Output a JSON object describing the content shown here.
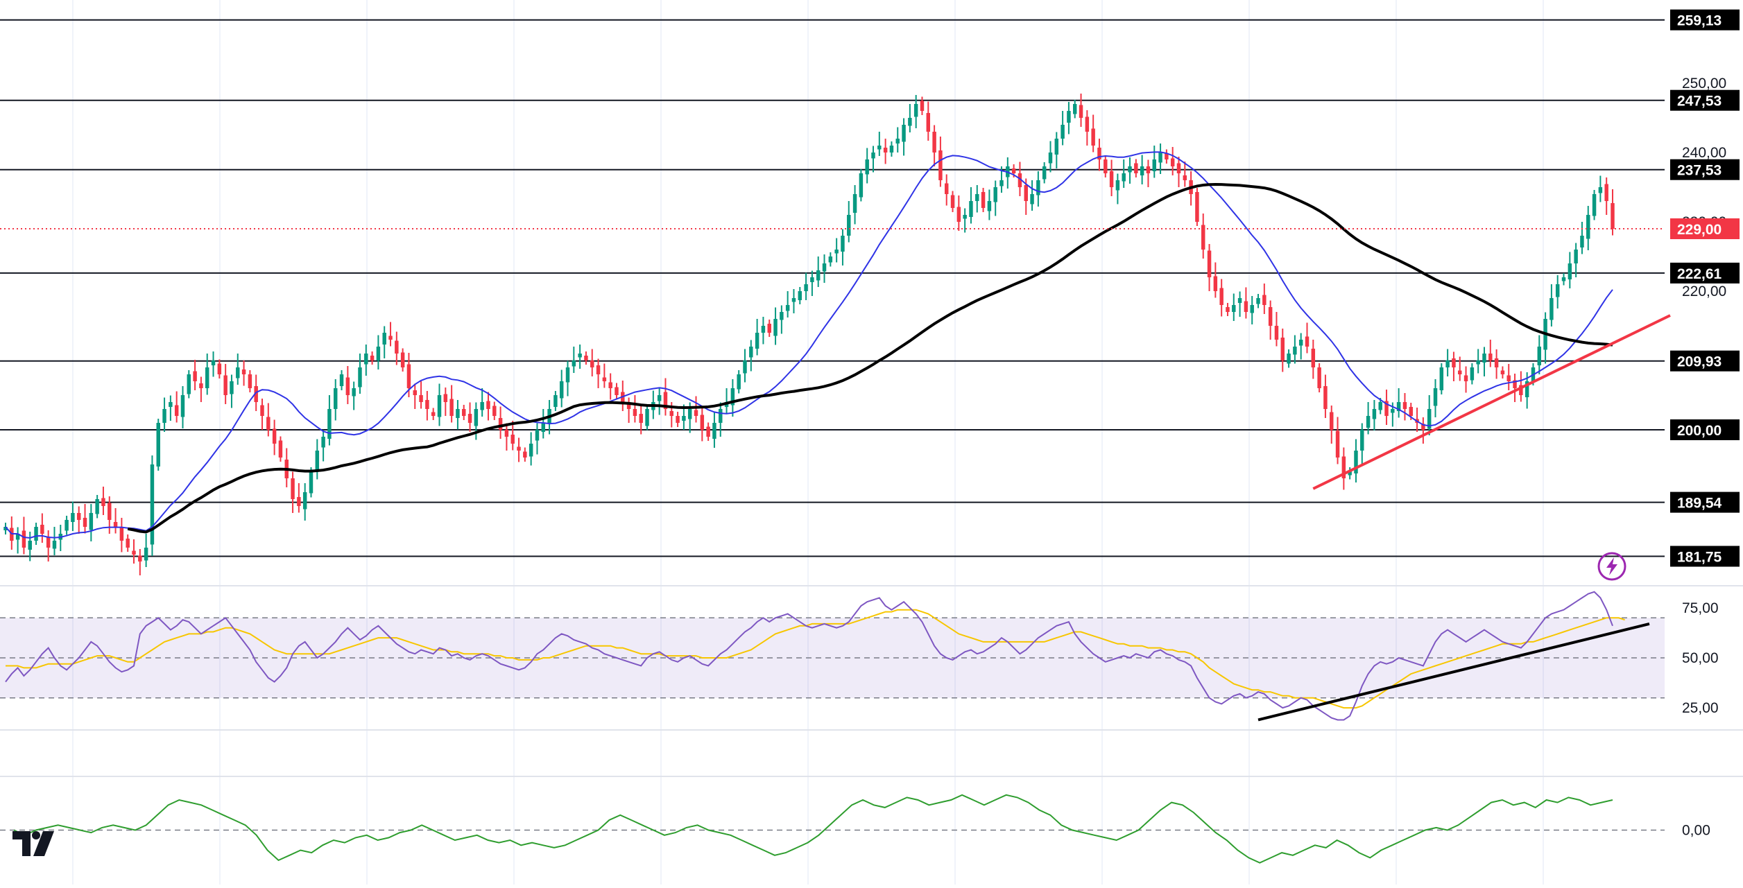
{
  "chart_data": [
    {
      "type": "candlestick",
      "panel": "price",
      "ylim": [
        178,
        262
      ],
      "grid": true,
      "y_ticks": [
        "250,00",
        "240,00",
        "230,00",
        "220,00"
      ],
      "price_levels": [
        {
          "value": 259.13,
          "label": "259,13"
        },
        {
          "value": 247.53,
          "label": "247,53"
        },
        {
          "value": 237.53,
          "label": "237,53"
        },
        {
          "value": 222.61,
          "label": "222,61"
        },
        {
          "value": 209.93,
          "label": "209,93"
        },
        {
          "value": 200.0,
          "label": "200,00"
        },
        {
          "value": 189.54,
          "label": "189,54"
        },
        {
          "value": 181.75,
          "label": "181,75"
        }
      ],
      "last_price": {
        "value": 229.0,
        "label": "229,00"
      },
      "closes": [
        186,
        184,
        185,
        183,
        184,
        186,
        185,
        183,
        184,
        185,
        187,
        188,
        187,
        186,
        188,
        190,
        189,
        187,
        186,
        184,
        183,
        182,
        181,
        183,
        195,
        201,
        203,
        204,
        202,
        205,
        208,
        207,
        206,
        209,
        210,
        208,
        205,
        207,
        209,
        208,
        206,
        204,
        202,
        200,
        198,
        196,
        193,
        190,
        189,
        191,
        194,
        197,
        199,
        203,
        206,
        208,
        205,
        206,
        209,
        211,
        210,
        212,
        214,
        213,
        211,
        209,
        206,
        205,
        204,
        203,
        202,
        205,
        204,
        202,
        203,
        202,
        201,
        203,
        204,
        203,
        202,
        200,
        199,
        198,
        197,
        196,
        198,
        200,
        201,
        203,
        205,
        207,
        209,
        210,
        211,
        210,
        209,
        208,
        207,
        206,
        205,
        204,
        203,
        202,
        201,
        203,
        204,
        205,
        203,
        202,
        201,
        202,
        203,
        202,
        200,
        199,
        201,
        203,
        204,
        206,
        208,
        210,
        212,
        214,
        215,
        214,
        216,
        217,
        218,
        219,
        220,
        221,
        222,
        223,
        224,
        225,
        226,
        228,
        231,
        234,
        237,
        239,
        240,
        241,
        240,
        241,
        242,
        244,
        245,
        247,
        246,
        243,
        240,
        236,
        234,
        232,
        230,
        231,
        233,
        234,
        232,
        233,
        235,
        236,
        238,
        237,
        235,
        233,
        234,
        236,
        238,
        240,
        242,
        244,
        246,
        247,
        245,
        243,
        241,
        239,
        237,
        235,
        236,
        237,
        238,
        237,
        238,
        237,
        239,
        240,
        239,
        238,
        237,
        236,
        234,
        230,
        226,
        222,
        220,
        218,
        217,
        218,
        219,
        217,
        218,
        219,
        218,
        215,
        213,
        210,
        211,
        212,
        213,
        212,
        209,
        206,
        203,
        200,
        196,
        193,
        194,
        197,
        200,
        202,
        203,
        204,
        202,
        203,
        204,
        203,
        202,
        201,
        200,
        203,
        206,
        209,
        210,
        209,
        208,
        207,
        209,
        210,
        211,
        210,
        209,
        208,
        207,
        206,
        205,
        207,
        209,
        212,
        216,
        219,
        221,
        222,
        224,
        226,
        228,
        231,
        234,
        235,
        233,
        229
      ]
    },
    {
      "type": "line",
      "panel": "rsi",
      "ylim": [
        15,
        85
      ],
      "y_ticks": [
        "75,00",
        "50,00",
        "25,00"
      ],
      "bands": [
        30,
        50,
        70
      ],
      "series": [
        {
          "values": [
            38,
            42,
            45,
            41,
            44,
            48,
            52,
            55,
            50,
            46,
            44,
            47,
            50,
            54,
            58,
            56,
            52,
            48,
            45,
            43,
            44,
            46,
            62,
            66,
            68,
            70,
            67,
            64,
            66,
            69,
            68,
            65,
            62,
            64,
            66,
            68,
            70,
            66,
            62,
            58,
            54,
            48,
            44,
            40,
            38,
            41,
            45,
            52,
            56,
            58,
            54,
            50,
            52,
            55,
            58,
            62,
            65,
            62,
            59,
            61,
            64,
            66,
            63,
            60,
            57,
            55,
            53,
            52,
            54,
            53,
            52,
            55,
            54,
            51,
            52,
            50,
            49,
            51,
            52,
            51,
            49,
            47,
            46,
            45,
            44,
            45,
            48,
            52,
            54,
            57,
            60,
            62,
            61,
            59,
            58,
            57,
            55,
            54,
            52,
            51,
            50,
            49,
            48,
            47,
            46,
            50,
            52,
            53,
            51,
            49,
            48,
            50,
            51,
            49,
            47,
            46,
            49,
            52,
            54,
            57,
            60,
            63,
            65,
            68,
            70,
            68,
            70,
            71,
            72,
            70,
            68,
            66,
            65,
            66,
            67,
            66,
            65,
            66,
            68,
            72,
            76,
            78,
            79,
            80,
            76,
            74,
            76,
            78,
            75,
            72,
            68,
            62,
            56,
            52,
            50,
            49,
            51,
            53,
            54,
            52,
            53,
            55,
            57,
            60,
            58,
            55,
            52,
            54,
            57,
            60,
            62,
            64,
            66,
            67,
            68,
            62,
            58,
            55,
            52,
            50,
            48,
            49,
            50,
            51,
            50,
            52,
            51,
            50,
            53,
            54,
            52,
            51,
            49,
            48,
            46,
            40,
            35,
            30,
            28,
            27,
            29,
            31,
            32,
            30,
            31,
            33,
            32,
            29,
            27,
            25,
            26,
            28,
            30,
            29,
            26,
            24,
            22,
            20,
            19,
            19,
            21,
            28,
            36,
            42,
            46,
            48,
            47,
            48,
            50,
            49,
            48,
            47,
            46,
            52,
            58,
            62,
            64,
            62,
            60,
            58,
            60,
            62,
            64,
            62,
            60,
            58,
            57,
            56,
            55,
            58,
            62,
            66,
            70,
            72,
            73,
            74,
            76,
            78,
            80,
            82,
            83,
            80,
            74,
            66
          ]
        },
        {
          "values": [
            46,
            46,
            46,
            45,
            45,
            45,
            46,
            47,
            47,
            47,
            47,
            47,
            48,
            49,
            50,
            51,
            51,
            51,
            50,
            49,
            48,
            48,
            50,
            52,
            54,
            56,
            58,
            59,
            60,
            61,
            62,
            62,
            62,
            63,
            63,
            64,
            65,
            65,
            64,
            63,
            62,
            60,
            58,
            56,
            54,
            53,
            52,
            52,
            52,
            52,
            52,
            52,
            52,
            52,
            53,
            54,
            55,
            56,
            57,
            58,
            59,
            60,
            60,
            60,
            60,
            59,
            58,
            57,
            56,
            55,
            54,
            54,
            54,
            53,
            53,
            52,
            52,
            52,
            52,
            52,
            51,
            51,
            50,
            50,
            49,
            49,
            49,
            49,
            50,
            50,
            51,
            52,
            53,
            54,
            55,
            56,
            56,
            56,
            56,
            56,
            55,
            55,
            54,
            53,
            52,
            52,
            52,
            52,
            51,
            51,
            51,
            51,
            51,
            51,
            50,
            50,
            50,
            50,
            50,
            51,
            52,
            53,
            54,
            56,
            58,
            60,
            62,
            63,
            64,
            65,
            66,
            66,
            67,
            67,
            67,
            67,
            67,
            67,
            67,
            68,
            69,
            70,
            71,
            72,
            73,
            73,
            74,
            74,
            74,
            74,
            73,
            72,
            70,
            68,
            66,
            64,
            62,
            61,
            60,
            59,
            58,
            58,
            58,
            58,
            58,
            58,
            58,
            58,
            58,
            58,
            58,
            59,
            60,
            61,
            62,
            63,
            63,
            62,
            61,
            60,
            59,
            58,
            57,
            57,
            56,
            56,
            56,
            55,
            55,
            55,
            54,
            54,
            53,
            53,
            52,
            50,
            48,
            45,
            43,
            41,
            39,
            37,
            36,
            35,
            34,
            34,
            33,
            33,
            32,
            31,
            31,
            30,
            30,
            30,
            30,
            29,
            28,
            27,
            26,
            25,
            25,
            25,
            26,
            28,
            30,
            32,
            34,
            36,
            38,
            40,
            42,
            43,
            44,
            45,
            46,
            47,
            48,
            49,
            50,
            51,
            52,
            53,
            54,
            55,
            56,
            57,
            57,
            57,
            57,
            58,
            58,
            59,
            60,
            61,
            62,
            63,
            64,
            65,
            66,
            67,
            68,
            69,
            70,
            70,
            70,
            69
          ]
        }
      ]
    },
    {
      "type": "line",
      "panel": "momentum",
      "ylim": [
        -1,
        1
      ],
      "y_ticks": [
        "0,00"
      ],
      "series": [
        {
          "values": [
            0.0,
            -0.1,
            0.0,
            0.05,
            0.1,
            0.05,
            0.0,
            -0.05,
            0.05,
            0.1,
            0.05,
            0.0,
            0.1,
            0.3,
            0.5,
            0.6,
            0.55,
            0.5,
            0.4,
            0.3,
            0.2,
            0.1,
            -0.1,
            -0.4,
            -0.6,
            -0.5,
            -0.4,
            -0.45,
            -0.3,
            -0.2,
            -0.25,
            -0.15,
            -0.1,
            -0.2,
            -0.15,
            -0.05,
            0.0,
            0.1,
            0.0,
            -0.1,
            -0.2,
            -0.15,
            -0.1,
            -0.2,
            -0.25,
            -0.2,
            -0.3,
            -0.25,
            -0.3,
            -0.35,
            -0.3,
            -0.2,
            -0.1,
            0.0,
            0.2,
            0.3,
            0.2,
            0.1,
            0.0,
            -0.1,
            -0.05,
            0.05,
            0.1,
            0.0,
            -0.05,
            -0.1,
            -0.2,
            -0.3,
            -0.4,
            -0.5,
            -0.45,
            -0.35,
            -0.25,
            -0.1,
            0.1,
            0.3,
            0.5,
            0.6,
            0.5,
            0.45,
            0.55,
            0.65,
            0.6,
            0.5,
            0.55,
            0.6,
            0.7,
            0.6,
            0.5,
            0.6,
            0.7,
            0.65,
            0.55,
            0.4,
            0.3,
            0.1,
            0.0,
            -0.05,
            -0.1,
            -0.15,
            -0.2,
            -0.1,
            0.0,
            0.2,
            0.4,
            0.55,
            0.5,
            0.35,
            0.15,
            -0.05,
            -0.2,
            -0.4,
            -0.55,
            -0.65,
            -0.55,
            -0.45,
            -0.5,
            -0.4,
            -0.3,
            -0.35,
            -0.2,
            -0.3,
            -0.45,
            -0.55,
            -0.4,
            -0.3,
            -0.2,
            -0.1,
            0.0,
            0.05,
            0.0,
            0.1,
            0.25,
            0.4,
            0.55,
            0.6,
            0.5,
            0.55,
            0.45,
            0.6,
            0.55,
            0.65,
            0.6,
            0.5,
            0.55,
            0.6
          ]
        }
      ]
    }
  ],
  "logo": {
    "icon": "tradingview-logo-icon"
  },
  "alert": {
    "icon": "lightning-icon"
  }
}
